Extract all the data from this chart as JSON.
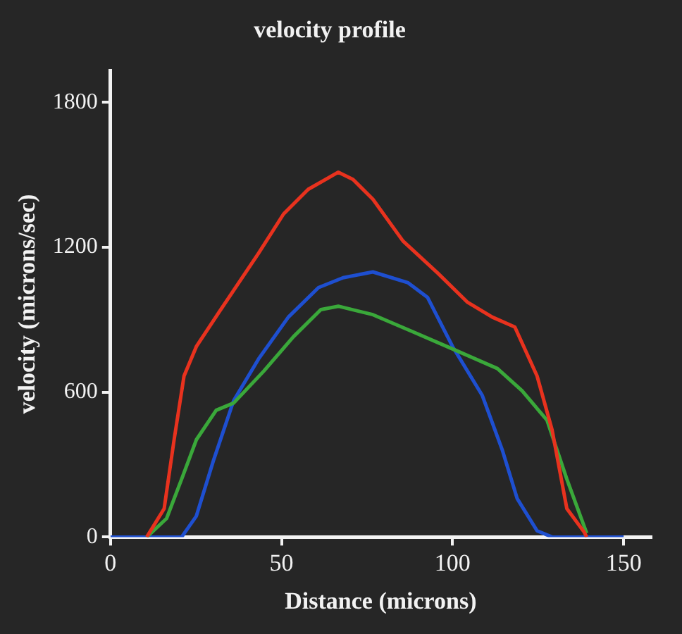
{
  "chart_data": {
    "type": "line",
    "title": "velocity profile",
    "xlabel": "Distance (microns)",
    "ylabel": "velocity (microns/sec)",
    "xlim": [
      0,
      158
    ],
    "xticks": [
      0,
      50,
      100,
      150
    ],
    "ylim": [
      0,
      1930
    ],
    "yticks": [
      0,
      600,
      1200,
      1800
    ],
    "grid": false,
    "legend": false,
    "marker": "none",
    "line_style": "solid",
    "series": [
      {
        "color": "#e8321e",
        "x": [
          10.6,
          15.7,
          18.6,
          21.5,
          25.1,
          31.7,
          37.5,
          43.3,
          50.6,
          57.8,
          66.6,
          70.9,
          76.7,
          85.5,
          95.6,
          104.4,
          111.6,
          118.2,
          124.7,
          129.1,
          133.4,
          138.5,
          139.2
        ],
        "values": [
          0,
          118,
          403,
          667,
          789,
          931,
          1053,
          1176,
          1338,
          1440,
          1511,
          1481,
          1399,
          1226,
          1094,
          972,
          911,
          870,
          667,
          443,
          118,
          20,
          0
        ]
      },
      {
        "color": "#3aa83a",
        "x": [
          10.6,
          16.4,
          20.8,
          25.1,
          30.9,
          36.0,
          44.8,
          53.5,
          61.5,
          66.6,
          76.7,
          88.4,
          100,
          113.1,
          120.3,
          127.6,
          133.4,
          139.2
        ],
        "values": [
          0,
          77,
          240,
          403,
          525,
          555,
          687,
          830,
          942,
          956,
          921,
          850,
          779,
          698,
          606,
          484,
          240,
          16
        ]
      },
      {
        "color": "#1e4fd0",
        "x": [
          0,
          20.8,
          25.1,
          30.2,
          36.0,
          43.3,
          52.0,
          60.8,
          68.0,
          76.7,
          87.0,
          92.7,
          100,
          108.7,
          114.5,
          118.9,
          124.7,
          129.1,
          150
        ],
        "values": [
          0,
          0,
          87,
          321,
          565,
          738,
          911,
          1033,
          1074,
          1098,
          1053,
          992,
          789,
          586,
          362,
          159,
          26,
          0,
          0
        ]
      }
    ]
  }
}
